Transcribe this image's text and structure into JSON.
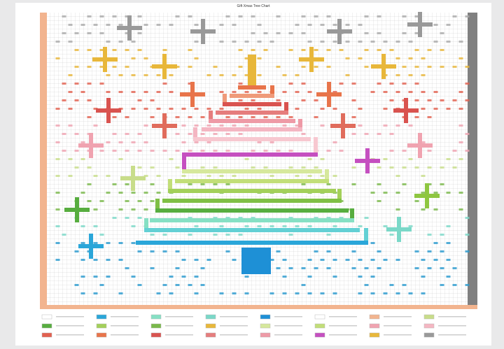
{
  "header": {
    "title": "Gift Xmas Tree Chart"
  }
}
